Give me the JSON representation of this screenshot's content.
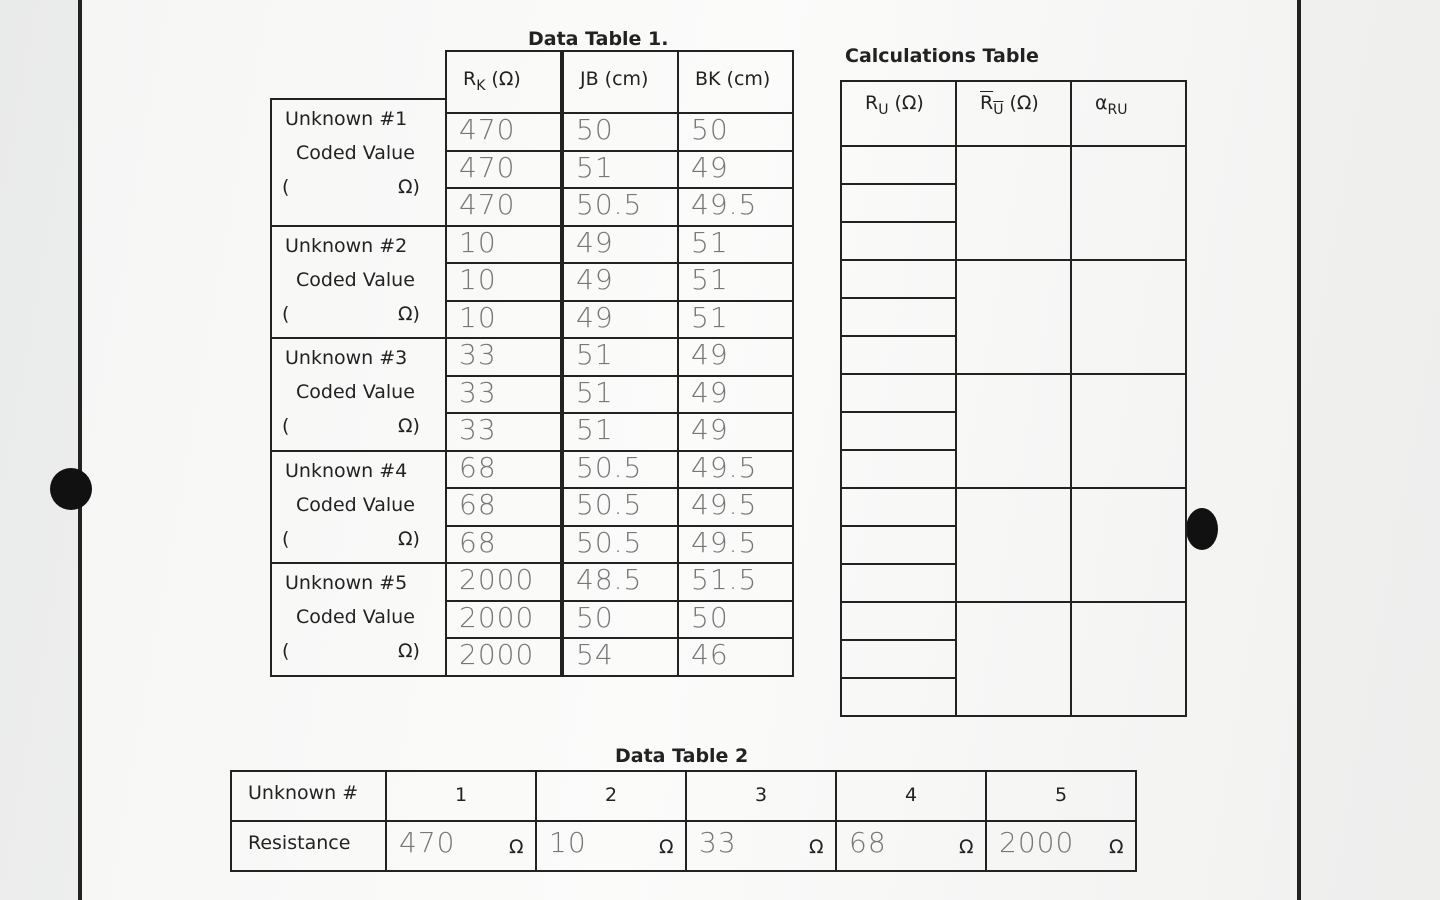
{
  "data_table_1": {
    "title": "Data Table 1.",
    "headers": [
      {
        "symbol": "R",
        "sub": "K",
        "unit": "(Ω)"
      },
      {
        "symbol": "JB",
        "unit": "(cm)"
      },
      {
        "symbol": "BK",
        "unit": "(cm)"
      }
    ],
    "groups": [
      {
        "label": "Unknown #1",
        "coded": "Coded Value",
        "open": "(",
        "close": "Ω)",
        "rows": [
          [
            "470",
            "50",
            "50"
          ],
          [
            "470",
            "51",
            "49"
          ],
          [
            "470",
            "50.5",
            "49.5"
          ]
        ]
      },
      {
        "label": "Unknown #2",
        "coded": "Coded Value",
        "open": "(",
        "close": "Ω)",
        "rows": [
          [
            "10",
            "49",
            "51"
          ],
          [
            "10",
            "49",
            "51"
          ],
          [
            "10",
            "49",
            "51"
          ]
        ]
      },
      {
        "label": "Unknown #3",
        "coded": "Coded Value",
        "open": "(",
        "close": "Ω)",
        "rows": [
          [
            "33",
            "51",
            "49"
          ],
          [
            "33",
            "51",
            "49"
          ],
          [
            "33",
            "51",
            "49"
          ]
        ]
      },
      {
        "label": "Unknown #4",
        "coded": "Coded Value",
        "open": "(",
        "close": "Ω)",
        "rows": [
          [
            "68",
            "50.5",
            "49.5"
          ],
          [
            "68",
            "50.5",
            "49.5"
          ],
          [
            "68",
            "50.5",
            "49.5"
          ]
        ]
      },
      {
        "label": "Unknown #5",
        "coded": "Coded Value",
        "open": "(",
        "close": "Ω)",
        "rows": [
          [
            "2000",
            "48.5",
            "51.5"
          ],
          [
            "2000",
            "50",
            "50"
          ],
          [
            "2000",
            "54",
            "46"
          ]
        ]
      }
    ]
  },
  "calculations_table": {
    "title": "Calculations Table",
    "headers": [
      {
        "symbol": "R",
        "sub": "U",
        "unit": "(Ω)"
      },
      {
        "symbol": "R",
        "sub": "U",
        "unit": "(Ω)",
        "overline": true
      },
      {
        "symbol": "α",
        "sub": "RU"
      }
    ]
  },
  "data_table_2": {
    "title": "Data Table 2",
    "row_headers": [
      "Unknown #",
      "Resistance"
    ],
    "unknowns": [
      "1",
      "2",
      "3",
      "4",
      "5"
    ],
    "resistances": [
      "470",
      "10",
      "33",
      "68",
      "2000"
    ],
    "unit": "Ω"
  }
}
